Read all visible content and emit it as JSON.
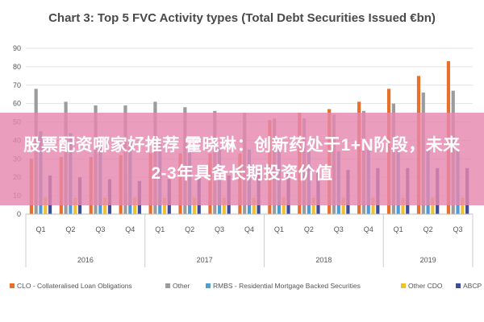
{
  "chart_data": {
    "type": "bar",
    "title": "Chart 3: Top 5 FVC Activity types (Total Debt Securities Issued €bn)",
    "xlabel": "",
    "ylabel": "",
    "ylim": [
      0,
      90
    ],
    "yticks": [
      0,
      10,
      20,
      30,
      40,
      50,
      60,
      70,
      80,
      90
    ],
    "grid": true,
    "legend_position": "bottom",
    "categories": [
      "Q1",
      "Q2",
      "Q3",
      "Q4",
      "Q1",
      "Q2",
      "Q3",
      "Q4",
      "Q1",
      "Q2",
      "Q3",
      "Q4",
      "Q1",
      "Q2",
      "Q3"
    ],
    "year_groups": [
      {
        "label": "2016",
        "count": 4
      },
      {
        "label": "2017",
        "count": 4
      },
      {
        "label": "2018",
        "count": 4
      },
      {
        "label": "2019",
        "count": 3
      }
    ],
    "series": [
      {
        "name": "CLO - Collateralised Loan Obligations",
        "color": "#e8702a",
        "values": [
          30,
          31,
          31,
          32,
          33,
          33,
          33,
          33,
          51,
          55,
          57,
          61,
          68,
          75,
          83
        ]
      },
      {
        "name": "Other",
        "color": "#9c9c9c",
        "values": [
          68,
          61,
          59,
          59,
          61,
          58,
          56,
          55,
          52,
          52,
          54,
          56,
          60,
          66,
          67
        ]
      },
      {
        "name": "RMBS - Residential Mortgage Backed Securities",
        "color": "#4a9fd4",
        "values": [
          45,
          44,
          40,
          39,
          38,
          37,
          36,
          35,
          35,
          34,
          34,
          35,
          35,
          35,
          35
        ]
      },
      {
        "name": "Other CDO",
        "color": "#f2c12e",
        "values": [
          9,
          9,
          9,
          9,
          9,
          9,
          9,
          9,
          9,
          9,
          9,
          9,
          9,
          9,
          9
        ]
      },
      {
        "name": "ABCP",
        "color": "#3c4d9c",
        "values": [
          21,
          20,
          19,
          18,
          19,
          20,
          21,
          23,
          23,
          24,
          24,
          25,
          25,
          25,
          25
        ]
      }
    ]
  },
  "overlay": {
    "text": "股票配资哪家好推荐 霍晓琳：创新药处于1+N阶段，未来2-3年具备长期投资价值"
  }
}
